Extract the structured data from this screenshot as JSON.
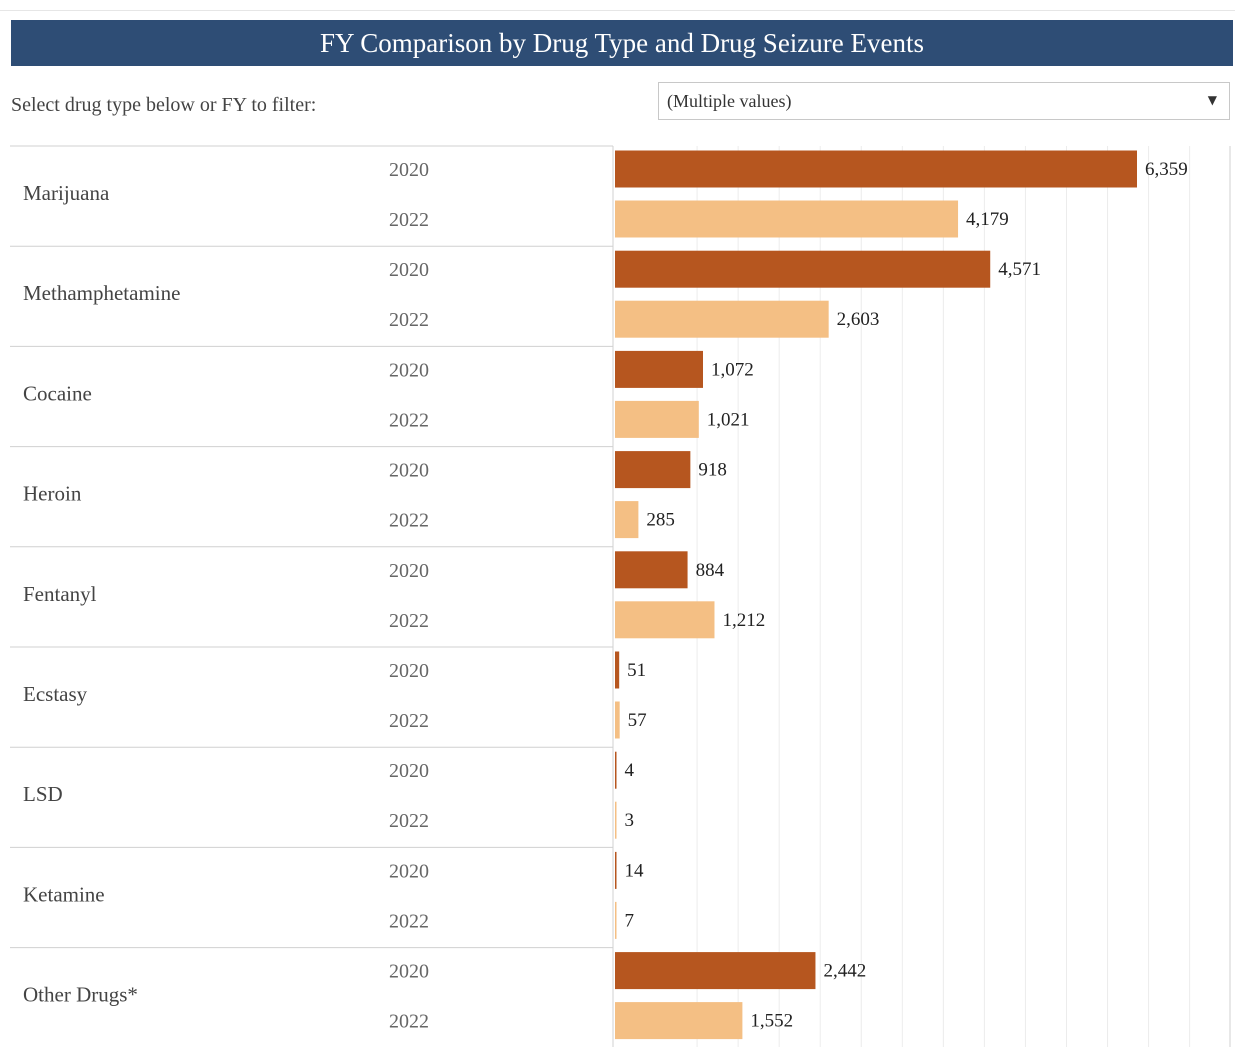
{
  "title": "FY Comparison by Drug Type and Drug Seizure Events",
  "filter": {
    "label": "Select drug type below or FY to filter:",
    "value": "(Multiple values)"
  },
  "colors": {
    "2020": "#b6561f",
    "2022": "#f4bf84",
    "header": "#2e4d75"
  },
  "chart_data": {
    "type": "bar",
    "orientation": "horizontal",
    "categories": [
      "Marijuana",
      "Methamphetamine",
      "Cocaine",
      "Heroin",
      "Fentanyl",
      "Ecstasy",
      "LSD",
      "Ketamine",
      "Other Drugs*"
    ],
    "series": [
      {
        "name": "2020",
        "values": [
          6359,
          4571,
          1072,
          918,
          884,
          51,
          4,
          14,
          2442
        ]
      },
      {
        "name": "2022",
        "values": [
          4179,
          2603,
          1021,
          285,
          1212,
          57,
          3,
          7,
          1552
        ]
      }
    ],
    "value_labels": [
      [
        "6,359",
        "4,179"
      ],
      [
        "4,571",
        "2,603"
      ],
      [
        "1,072",
        "1,021"
      ],
      [
        "918",
        "285"
      ],
      [
        "884",
        "1,212"
      ],
      [
        "51",
        "57"
      ],
      [
        "4",
        "3"
      ],
      [
        "14",
        "7"
      ],
      [
        "2,442",
        "1,552"
      ]
    ],
    "xlim": [
      0,
      7000
    ],
    "grid": true
  }
}
